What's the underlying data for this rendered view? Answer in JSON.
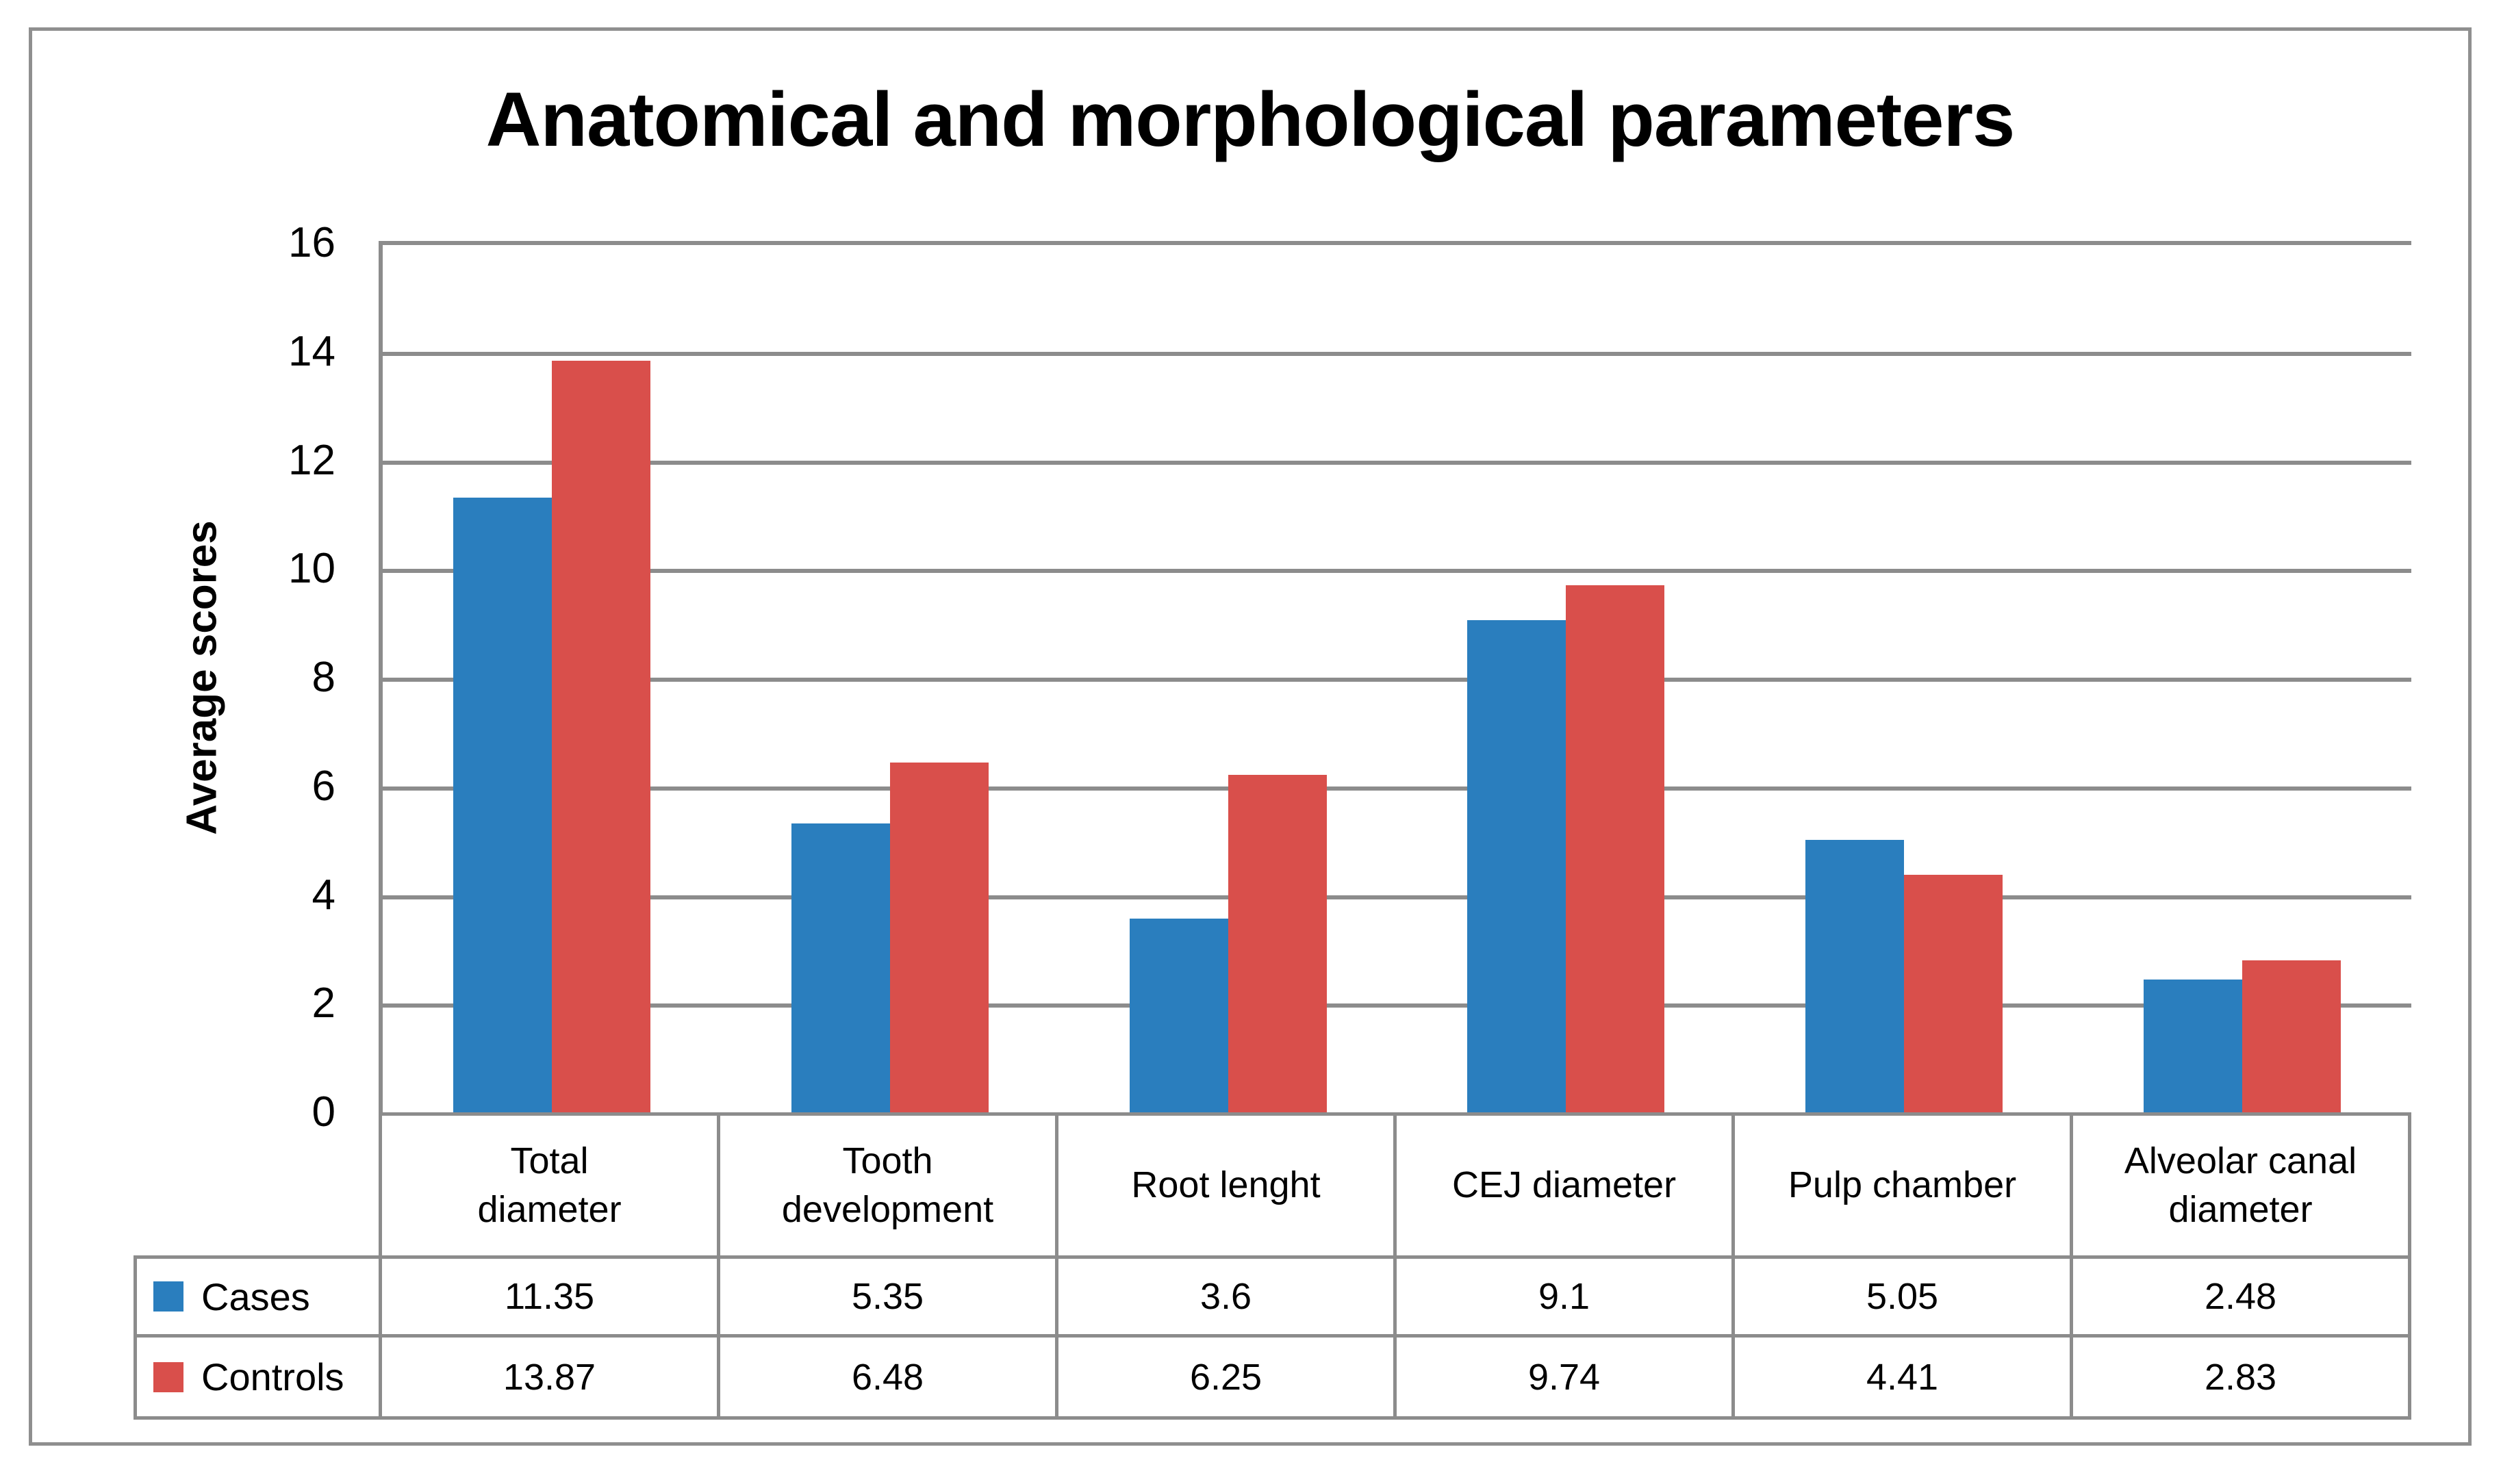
{
  "figure": {
    "title": "Anatomical and morphological parameters",
    "y_axis_title": "Average scores"
  },
  "chart_data": {
    "type": "bar",
    "title": "Anatomical and morphological parameters",
    "xlabel": "",
    "ylabel": "Average scores",
    "ylim": [
      0,
      16
    ],
    "yticks": [
      0,
      2,
      4,
      6,
      8,
      10,
      12,
      14,
      16
    ],
    "grid": true,
    "legend_position": "table-left",
    "categories": [
      "Total\ndiameter",
      "Tooth\ndevelopment",
      "Root lenght",
      "CEJ diameter",
      "Pulp chamber",
      "Alveolar canal\ndiameter"
    ],
    "series": [
      {
        "name": "Cases",
        "color": "#2A7EBE",
        "values": [
          11.35,
          5.35,
          3.6,
          9.1,
          5.05,
          2.48
        ]
      },
      {
        "name": "Controls",
        "color": "#D94F4B",
        "values": [
          13.87,
          6.48,
          6.25,
          9.74,
          4.41,
          2.83
        ]
      }
    ]
  },
  "colors": {
    "gridline": "#8c8c8c",
    "frame": "#8f8f8f",
    "text": "#000000",
    "background": "#ffffff"
  }
}
